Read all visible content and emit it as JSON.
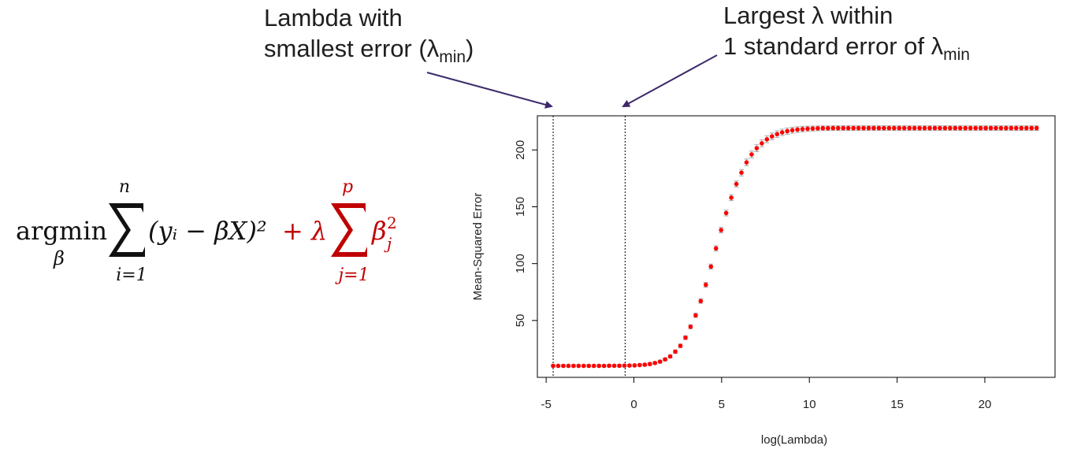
{
  "annotations": {
    "left": {
      "line1": "Lambda with",
      "line2_prefix": "smallest error (λ",
      "line2_sub": "min",
      "line2_suffix": ")"
    },
    "right": {
      "line1": "Largest λ within",
      "line2_prefix": "1 standard error of λ",
      "line2_sub": "min"
    }
  },
  "formula": {
    "argmin": "argmin",
    "argmin_sub": "β",
    "sum1_upper": "n",
    "sum1_lower": "i=1",
    "loss_term": "(yᵢ − βX)²",
    "penalty_prefix": "+ λ",
    "sum2_upper": "p",
    "sum2_lower": "j=1",
    "penalty_term": "β",
    "penalty_sup": "2",
    "penalty_sub": "j",
    "penalty_color": "#c00000"
  },
  "chart_data": {
    "type": "scatter",
    "title": "",
    "xlabel": "log(Lambda)",
    "ylabel": "Mean-Squared Error",
    "xlim": [
      -5.5,
      24
    ],
    "ylim": [
      0,
      230
    ],
    "x_ticks": [
      -5,
      0,
      5,
      10,
      15,
      20
    ],
    "y_ticks": [
      50,
      100,
      150,
      200
    ],
    "grid": false,
    "point_color": "#ff0000",
    "errorbar_color": "#a6a6a6",
    "vlines": [
      {
        "x": -4.6,
        "label": "lambda.min"
      },
      {
        "x": -0.5,
        "label": "lambda.1se"
      }
    ],
    "x": [
      -4.6,
      -4.31,
      -4.02,
      -3.73,
      -3.44,
      -3.15,
      -2.86,
      -2.57,
      -2.28,
      -1.99,
      -1.7,
      -1.41,
      -1.12,
      -0.83,
      -0.54,
      -0.25,
      0.04,
      0.33,
      0.62,
      0.91,
      1.2,
      1.49,
      1.78,
      2.07,
      2.36,
      2.65,
      2.94,
      3.23,
      3.52,
      3.81,
      4.1,
      4.39,
      4.68,
      4.97,
      5.26,
      5.55,
      5.84,
      6.13,
      6.42,
      6.71,
      7.0,
      7.29,
      7.58,
      7.87,
      8.16,
      8.45,
      8.74,
      9.03,
      9.32,
      9.61,
      9.9,
      10.19,
      10.48,
      10.77,
      11.06,
      11.35,
      11.64,
      11.93,
      12.22,
      12.51,
      12.8,
      13.09,
      13.38,
      13.67,
      13.96,
      14.25,
      14.54,
      14.83,
      15.12,
      15.41,
      15.7,
      15.99,
      16.28,
      16.57,
      16.86,
      17.15,
      17.44,
      17.73,
      18.02,
      18.31,
      18.6,
      18.89,
      19.18,
      19.47,
      19.76,
      20.05,
      20.34,
      20.63,
      20.92,
      21.21,
      21.5,
      21.79,
      22.08,
      22.37,
      22.66,
      22.95
    ],
    "y": [
      10.1,
      10.1,
      10.1,
      10.1,
      10.1,
      10.1,
      10.1,
      10.1,
      10.1,
      10.1,
      10.1,
      10.2,
      10.2,
      10.2,
      10.3,
      10.4,
      10.5,
      10.8,
      11.1,
      11.7,
      12.6,
      13.8,
      15.8,
      18.4,
      22.6,
      27.7,
      34.9,
      44.5,
      54.5,
      67.1,
      81.4,
      97.4,
      113.4,
      129.5,
      144.5,
      158.0,
      170.0,
      180.0,
      189.0,
      196.0,
      201.5,
      205.8,
      209.3,
      211.9,
      213.9,
      215.4,
      216.5,
      217.3,
      217.9,
      218.3,
      218.6,
      218.8,
      219.0,
      219.1,
      219.1,
      219.2,
      219.2,
      219.2,
      219.2,
      219.2,
      219.2,
      219.2,
      219.2,
      219.2,
      219.2,
      219.2,
      219.2,
      219.2,
      219.2,
      219.2,
      219.2,
      219.2,
      219.2,
      219.2,
      219.2,
      219.2,
      219.2,
      219.2,
      219.2,
      219.2,
      219.2,
      219.2,
      219.2,
      219.2,
      219.2,
      219.2,
      219.2,
      219.2,
      219.2,
      219.2,
      219.2,
      219.2,
      219.2,
      219.2,
      219.2,
      219.2
    ],
    "error_half_width": [
      1.0,
      1.0,
      1.0,
      1.0,
      1.0,
      1.0,
      1.0,
      1.0,
      1.0,
      1.0,
      1.0,
      1.0,
      1.0,
      1.0,
      1.0,
      1.0,
      1.0,
      1.0,
      1.0,
      1.1,
      1.1,
      1.2,
      1.3,
      1.4,
      1.5,
      1.6,
      1.7,
      1.8,
      1.9,
      2.0,
      2.1,
      2.2,
      2.3,
      2.4,
      2.5,
      2.6,
      2.7,
      2.8,
      2.9,
      3.0,
      3.0,
      3.0,
      3.0,
      3.0,
      2.9,
      2.8,
      2.7,
      2.6,
      2.5,
      2.4,
      2.3,
      2.2,
      2.1,
      2.0,
      2.0,
      2.0,
      2.0,
      2.0,
      2.0,
      2.0,
      2.0,
      2.0,
      2.0,
      2.0,
      2.0,
      2.0,
      2.0,
      2.0,
      2.0,
      2.0,
      2.0,
      2.0,
      2.0,
      2.0,
      2.0,
      2.0,
      2.0,
      2.0,
      2.0,
      2.0,
      2.0,
      2.0,
      2.0,
      2.0,
      2.0,
      2.0,
      2.0,
      2.0,
      2.0,
      2.0,
      2.0,
      2.0,
      2.0,
      2.0,
      2.0,
      2.0
    ]
  }
}
